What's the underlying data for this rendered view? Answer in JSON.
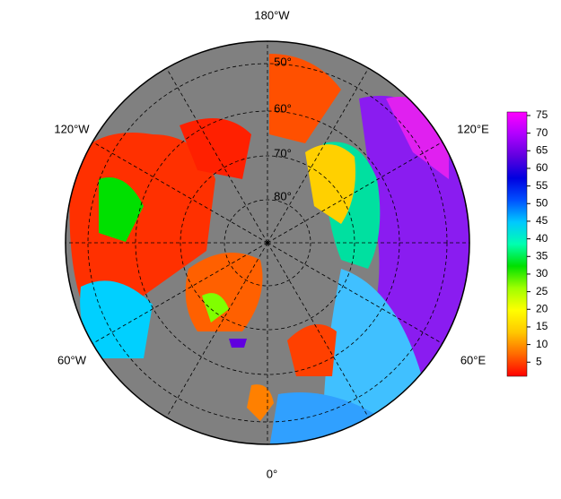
{
  "map": {
    "projection": "north polar stereographic",
    "lon_labels": [
      "180°W",
      "120°E",
      "60°E",
      "0°",
      "60°W",
      "120°W"
    ],
    "lat_labels": [
      "50°",
      "60°",
      "70°",
      "80°"
    ],
    "colorbar": {
      "lim": [
        1,
        76
      ],
      "ticks": [
        5,
        10,
        15,
        20,
        25,
        30,
        35,
        40,
        45,
        50,
        55,
        60,
        65,
        70,
        75
      ],
      "colors": [
        "#ff0000",
        "#ff6a00",
        "#ffc800",
        "#ffff00",
        "#a0ff00",
        "#00e000",
        "#00ffb0",
        "#00c8ff",
        "#0050ff",
        "#0000e0",
        "#6000e0",
        "#b000ff",
        "#ff00ff"
      ]
    }
  }
}
